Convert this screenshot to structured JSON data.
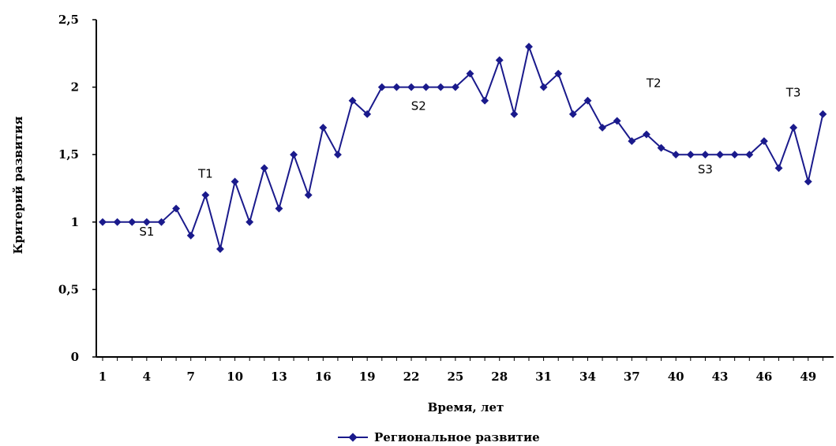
{
  "chart_data": {
    "type": "line",
    "title": "",
    "xlabel": "Время, лет",
    "ylabel": "Критерий развития",
    "ylim": [
      0,
      2.5
    ],
    "xlim": [
      1,
      50
    ],
    "yticks": [
      "0",
      "0,5",
      "1",
      "1,5",
      "2",
      "2,5"
    ],
    "xticks": [
      "1",
      "4",
      "7",
      "10",
      "13",
      "16",
      "19",
      "22",
      "25",
      "28",
      "31",
      "34",
      "37",
      "40",
      "43",
      "46",
      "49"
    ],
    "grid": false,
    "legend_position": "bottom",
    "colors": {
      "series": "#1a1a8c",
      "axis": "#000000"
    },
    "series": [
      {
        "name": "Региональное развитие",
        "x": [
          1,
          2,
          3,
          4,
          5,
          6,
          7,
          8,
          9,
          10,
          11,
          12,
          13,
          14,
          15,
          16,
          17,
          18,
          19,
          20,
          21,
          22,
          23,
          24,
          25,
          26,
          27,
          28,
          29,
          30,
          31,
          32,
          33,
          34,
          35,
          36,
          37,
          38,
          39,
          40,
          41,
          42,
          43,
          44,
          45,
          46,
          47,
          48,
          49,
          50
        ],
        "values": [
          1.0,
          1.0,
          1.0,
          1.0,
          1.0,
          1.1,
          0.9,
          1.2,
          0.8,
          1.3,
          1.0,
          1.4,
          1.1,
          1.5,
          1.2,
          1.7,
          1.5,
          1.9,
          1.8,
          2.0,
          2.0,
          2.0,
          2.0,
          2.0,
          2.0,
          2.1,
          1.9,
          2.2,
          1.8,
          2.3,
          2.0,
          2.1,
          1.8,
          1.9,
          1.7,
          1.75,
          1.6,
          1.65,
          1.55,
          1.5,
          1.5,
          1.5,
          1.5,
          1.5,
          1.5,
          1.6,
          1.4,
          1.7,
          1.3,
          1.8
        ]
      }
    ],
    "annotations": [
      {
        "text": "S1",
        "x": 4.0,
        "y": 0.9
      },
      {
        "text": "T1",
        "x": 8.0,
        "y": 1.33
      },
      {
        "text": "S2",
        "x": 22.5,
        "y": 1.83
      },
      {
        "text": "T2",
        "x": 38.5,
        "y": 2.0
      },
      {
        "text": "S3",
        "x": 42.0,
        "y": 1.36
      },
      {
        "text": "T3",
        "x": 48.0,
        "y": 1.93
      }
    ]
  }
}
